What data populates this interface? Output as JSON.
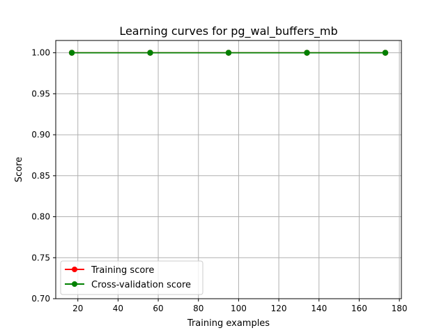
{
  "chart_data": {
    "type": "line",
    "title": "Learning curves for pg_wal_buffers_mb",
    "xlabel": "Training examples",
    "ylabel": "Score",
    "x": [
      17,
      56,
      95,
      134,
      173
    ],
    "series": [
      {
        "name": "Training score",
        "color": "#ff0000",
        "values": [
          1.0,
          1.0,
          1.0,
          1.0,
          1.0
        ]
      },
      {
        "name": "Cross-validation score",
        "color": "#008000",
        "values": [
          1.0,
          1.0,
          1.0,
          1.0,
          1.0
        ]
      }
    ],
    "xlim": [
      9,
      181
    ],
    "ylim": [
      0.7,
      1.015
    ],
    "xticks": [
      20,
      40,
      60,
      80,
      100,
      120,
      140,
      160,
      180
    ],
    "yticks": [
      0.7,
      0.75,
      0.8,
      0.85,
      0.9,
      0.95,
      1.0
    ],
    "xtick_labels": [
      "20",
      "40",
      "60",
      "80",
      "100",
      "120",
      "140",
      "160",
      "180"
    ],
    "ytick_labels": [
      "0.70",
      "0.75",
      "0.80",
      "0.85",
      "0.90",
      "0.95",
      "1.00"
    ],
    "grid": true,
    "legend_position": "lower-left"
  }
}
